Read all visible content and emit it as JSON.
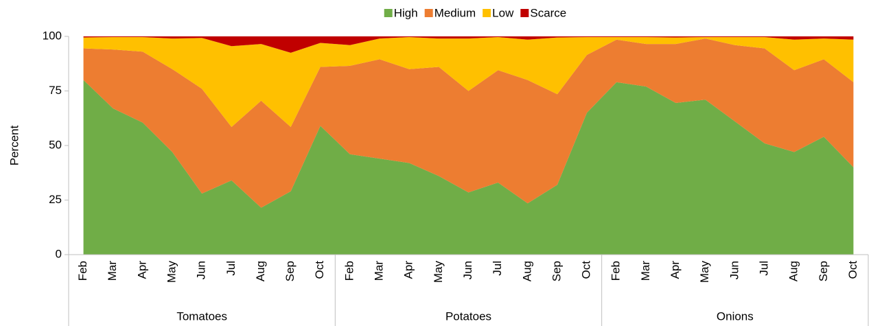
{
  "chart_data": {
    "type": "stacked_area",
    "y_axis_label": "Percent",
    "groups": [
      {
        "name": "Tomatoes",
        "categories": [
          "Feb",
          "Mar",
          "Apr",
          "May",
          "Jun",
          "Jul",
          "Aug",
          "Sep",
          "Oct"
        ]
      },
      {
        "name": "Potatoes",
        "categories": [
          "Feb",
          "Mar",
          "Apr",
          "May",
          "Jun",
          "Jul",
          "Aug",
          "Sep",
          "Oct"
        ]
      },
      {
        "name": "Onions",
        "categories": [
          "Feb",
          "Mar",
          "Apr",
          "May",
          "Jun",
          "Jul",
          "Aug",
          "Sep",
          "Oct"
        ]
      }
    ],
    "series": [
      {
        "name": "High",
        "color": "#70ad47",
        "values": [
          80,
          67,
          60.5,
          47,
          28,
          34,
          21.5,
          29,
          59,
          46,
          44,
          42,
          36,
          28.5,
          33,
          23.5,
          32,
          65,
          79,
          77,
          69.5,
          71,
          61,
          51,
          47,
          54,
          40
        ]
      },
      {
        "name": "Medium",
        "color": "#ed7d31",
        "values": [
          14.5,
          27,
          32.5,
          38,
          48,
          24.5,
          49,
          29.5,
          27,
          40.5,
          45.5,
          43,
          50,
          46.5,
          51.5,
          56.5,
          41.5,
          26.5,
          19.5,
          19.5,
          27,
          28,
          35,
          43.5,
          37.5,
          35.5,
          39
        ]
      },
      {
        "name": "Low",
        "color": "#ffc000",
        "values": [
          5,
          5.7,
          6.7,
          14,
          23.3,
          37,
          26,
          34,
          11,
          9.5,
          9.5,
          14.7,
          13,
          24,
          15.2,
          18.5,
          26,
          8.2,
          1.2,
          3.2,
          3,
          0.7,
          3.7,
          5.2,
          14,
          9.5,
          19.5
        ]
      },
      {
        "name": "Scarce",
        "color": "#c00000",
        "values": [
          0.5,
          0.3,
          0.3,
          1,
          0.7,
          4.5,
          3.5,
          7.5,
          3,
          4,
          1,
          0.3,
          1,
          1,
          0.3,
          1.5,
          0.5,
          0.3,
          0.3,
          0.3,
          0.5,
          0.3,
          0.3,
          0.3,
          1.5,
          1,
          1.5
        ]
      }
    ],
    "ylim": [
      0,
      100
    ],
    "yticks": [
      0,
      25,
      50,
      75,
      100
    ],
    "grid": false,
    "legend": "top"
  }
}
